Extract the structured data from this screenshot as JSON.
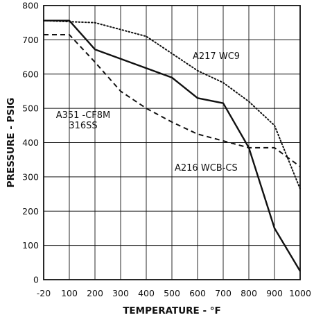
{
  "chart_data": {
    "type": "line",
    "xlabel": "TEMPERATURE - °F",
    "ylabel": "PRESSURE - PSIG",
    "xlim": [
      -20,
      1000
    ],
    "ylim": [
      0,
      800
    ],
    "x_ticks": [
      -20,
      100,
      200,
      300,
      400,
      500,
      600,
      700,
      800,
      900,
      1000
    ],
    "y_ticks": [
      0,
      100,
      200,
      300,
      400,
      500,
      600,
      700,
      800
    ],
    "x_tick_labels": [
      "-20",
      "100",
      "200",
      "300",
      "400",
      "500",
      "600",
      "700",
      "800",
      "900",
      "1000"
    ],
    "y_tick_labels": [
      "0",
      "100",
      "200",
      "300",
      "400",
      "500",
      "600",
      "700",
      "800"
    ],
    "grid": true,
    "series": [
      {
        "name": "A216 WCB-CS",
        "style": "solid",
        "x": [
          -20,
          100,
          200,
          500,
          600,
          700,
          800,
          900,
          1000
        ],
        "y": [
          756,
          756,
          672,
          590,
          530,
          515,
          385,
          150,
          25
        ]
      },
      {
        "name": "A217 WC9",
        "style": "dotted",
        "x": [
          -20,
          200,
          400,
          600,
          700,
          800,
          900,
          1000
        ],
        "y": [
          756,
          750,
          710,
          610,
          575,
          520,
          450,
          265
        ]
      },
      {
        "name": "A351 -CF8M\n316SS",
        "style": "dashed",
        "x": [
          -20,
          100,
          200,
          300,
          400,
          500,
          600,
          700,
          800,
          900,
          1000
        ],
        "y": [
          715,
          715,
          635,
          550,
          500,
          460,
          425,
          405,
          385,
          385,
          330
        ]
      }
    ],
    "series_labels": {
      "A216 WCB-CS": "A216 WCB-CS",
      "A217 WC9": "A217 WC9",
      "A351 -CF8M\n316SS": "A351 -CF8M\n316SS"
    }
  }
}
